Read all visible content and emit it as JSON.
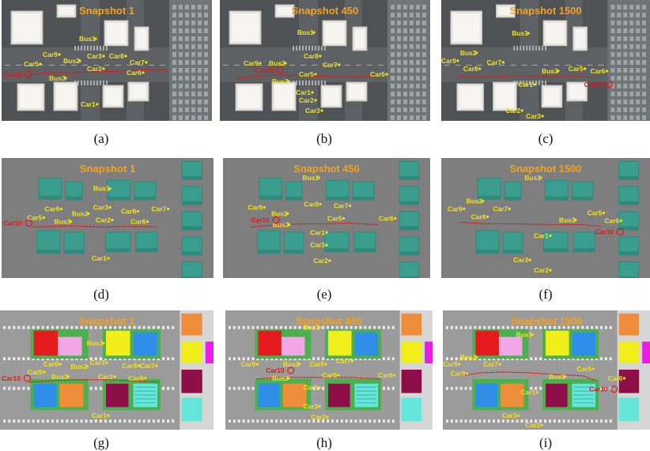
{
  "colors": {
    "accent_label": "#f2e21c",
    "accent_title": "#f6a21e",
    "ego_vehicle": "#e01818",
    "trajectory": "#e01818"
  },
  "panels": [
    {
      "id": "a",
      "caption": "(a)",
      "style": "photo",
      "title": "Snapshot 1",
      "labels": [
        "Bus1",
        "Car9",
        "Bus2",
        "Car3",
        "Car8",
        "Car5",
        "Car7",
        "Car2",
        "Car6",
        "Bus3",
        "Car1"
      ],
      "ego_label": "Car10"
    },
    {
      "id": "b",
      "caption": "(b)",
      "style": "photo",
      "title": "Snapshot 450",
      "labels": [
        "Bus1",
        "Car9",
        "Bus2",
        "Car8",
        "Car7",
        "Bus3",
        "Car5",
        "Car6",
        "Car1",
        "Car2",
        "Car3"
      ],
      "ego_label": "Car10"
    },
    {
      "id": "c",
      "caption": "(c)",
      "style": "photo",
      "title": "Snapshot 1500",
      "labels": [
        "Bus1",
        "Bus2",
        "Car9",
        "Car7",
        "Car8",
        "Car5",
        "Bus3",
        "Car6",
        "Car1",
        "Car2",
        "Car3"
      ],
      "ego_label": "Car10"
    },
    {
      "id": "d",
      "caption": "(d)",
      "style": "flat",
      "title": "Snapshot 1",
      "labels": [
        "Bus1",
        "Car9",
        "Bus2",
        "Car3",
        "Car8",
        "Car7",
        "Car5",
        "Bus3",
        "Car2",
        "Car6",
        "Car1"
      ],
      "ego_label": "Car10"
    },
    {
      "id": "e",
      "caption": "(e)",
      "style": "flat",
      "title": "Snapshot 450",
      "labels": [
        "Bus1",
        "Car9",
        "Bus2",
        "Car8",
        "Car7",
        "Bus3",
        "Car5",
        "Car6",
        "Car1",
        "Car3",
        "Car2"
      ],
      "ego_label": "Car10"
    },
    {
      "id": "f",
      "caption": "(f)",
      "style": "flat",
      "title": "Snapshot 1500",
      "labels": [
        "Bus1",
        "Car9",
        "Bus2",
        "Car7",
        "Car8",
        "Car5",
        "Car6",
        "Bus3",
        "Car1",
        "Car3",
        "Car2"
      ],
      "ego_label": "Car10"
    },
    {
      "id": "g",
      "caption": "(g)",
      "style": "color",
      "title": "Snapshot 1",
      "labels": [
        "Bus1",
        "Car9",
        "Bus2",
        "Car3",
        "Car8",
        "Car7",
        "Car5",
        "Bus3",
        "Car2",
        "Car6",
        "Car1"
      ],
      "ego_label": "Car10"
    },
    {
      "id": "h",
      "caption": "(h)",
      "style": "color",
      "title": "Snapshot 450",
      "labels": [
        "Bus1",
        "Car9",
        "Bus2",
        "Car8",
        "Car7",
        "Bus3",
        "Car5",
        "Car6",
        "Car1",
        "Car3",
        "Car2"
      ],
      "ego_label": "Car10"
    },
    {
      "id": "i",
      "caption": "(i)",
      "style": "color",
      "title": "Snapshot 1500",
      "labels": [
        "Bus1",
        "Bus2",
        "Car9",
        "Car7",
        "Car8",
        "Car5",
        "Car6",
        "Bus3",
        "Car1",
        "Car3",
        "Car2"
      ],
      "ego_label": "Car10"
    }
  ]
}
